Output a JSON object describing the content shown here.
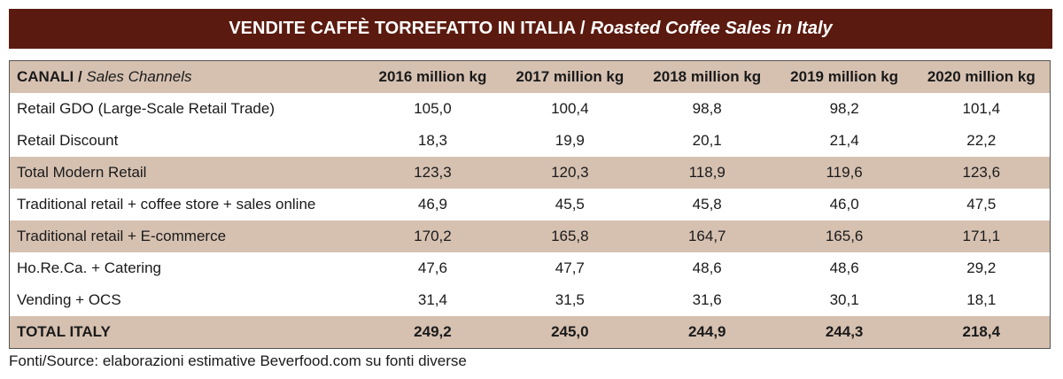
{
  "title": {
    "main": "VENDITE CAFFÈ TORREFATTO IN ITALIA /",
    "sub": "Roasted Coffee Sales in Italy"
  },
  "table": {
    "header": {
      "channel": "CANALI /",
      "channel_en": "Sales Channels",
      "years": [
        "2016 million kg",
        "2017 million kg",
        "2018 million kg",
        "2019 million kg",
        "2020 million kg"
      ]
    },
    "rows": [
      [
        "Retail GDO (Large-Scale Retail Trade)",
        "105,0",
        "100,4",
        "98,8",
        "98,2",
        "101,4"
      ],
      [
        "Retail Discount",
        "18,3",
        "19,9",
        "20,1",
        "21,4",
        "22,2"
      ],
      [
        "Total Modern Retail",
        "123,3",
        "120,3",
        "118,9",
        "119,6",
        "123,6"
      ],
      [
        "Traditional retail + coffee store + sales online",
        "46,9",
        "45,5",
        "45,8",
        "46,0",
        "47,5"
      ],
      [
        "Traditional retail + E-commerce",
        "170,2",
        "165,8",
        "164,7",
        "165,6",
        "171,1"
      ],
      [
        "Ho.Re.Ca. + Catering",
        "47,6",
        "47,7",
        "48,6",
        "48,6",
        "29,2"
      ],
      [
        "Vending + OCS",
        "31,4",
        "31,5",
        "31,6",
        "30,1",
        "18,1"
      ],
      [
        "TOTAL ITALY",
        "249,2",
        "245,0",
        "244,9",
        "244,3",
        "218,4"
      ]
    ]
  },
  "source": "Fonti/Source: elaborazioni estimative Beverfood.com su fonti diverse"
}
